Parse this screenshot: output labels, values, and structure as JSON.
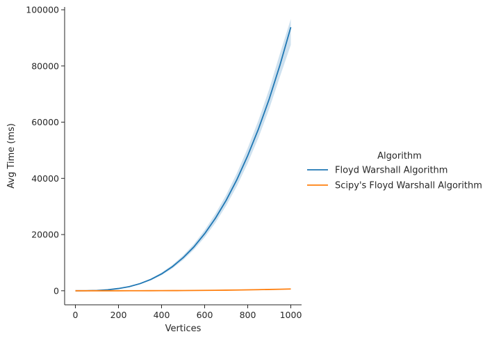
{
  "chart_data": {
    "type": "line",
    "xlabel": "Vertices",
    "ylabel": "Avg Time (ms)",
    "xlim": [
      -50,
      1050
    ],
    "ylim": [
      -5000,
      101000
    ],
    "xticks": [
      0,
      200,
      400,
      600,
      800,
      1000
    ],
    "yticks": [
      0,
      20000,
      40000,
      60000,
      80000,
      100000
    ],
    "grid": false,
    "legend": {
      "title": "Algorithm",
      "placement": "right"
    },
    "series": [
      {
        "name": "Floyd Warshall Algorithm",
        "color": "#1f77b4",
        "x": [
          0,
          50,
          100,
          150,
          200,
          250,
          300,
          350,
          400,
          450,
          500,
          550,
          600,
          650,
          700,
          750,
          800,
          850,
          900,
          950,
          1000
        ],
        "y": [
          0,
          15,
          100,
          340,
          800,
          1470,
          2540,
          4030,
          6000,
          8560,
          11750,
          15600,
          20300,
          25800,
          32200,
          39600,
          48100,
          57600,
          68300,
          80400,
          93800
        ],
        "ci_low": [
          0,
          10,
          80,
          300,
          720,
          1330,
          2320,
          3700,
          5550,
          7950,
          10950,
          14600,
          19000,
          24200,
          30300,
          37300,
          45400,
          54500,
          64800,
          76300,
          87500
        ],
        "ci_high": [
          0,
          20,
          120,
          380,
          880,
          1610,
          2760,
          4360,
          6450,
          9170,
          12550,
          16600,
          21600,
          27400,
          34100,
          41900,
          50800,
          60700,
          71800,
          84500,
          96700
        ]
      },
      {
        "name": "Scipy's Floyd Warshall Algorithm",
        "color": "#ff7f0e",
        "x": [
          0,
          50,
          100,
          150,
          200,
          250,
          300,
          350,
          400,
          450,
          500,
          550,
          600,
          650,
          700,
          750,
          800,
          850,
          900,
          950,
          1000
        ],
        "y": [
          0,
          0,
          1,
          2,
          5,
          10,
          17,
          27,
          41,
          58,
          80,
          107,
          138,
          176,
          220,
          270,
          328,
          393,
          467,
          549,
          640
        ]
      }
    ]
  }
}
